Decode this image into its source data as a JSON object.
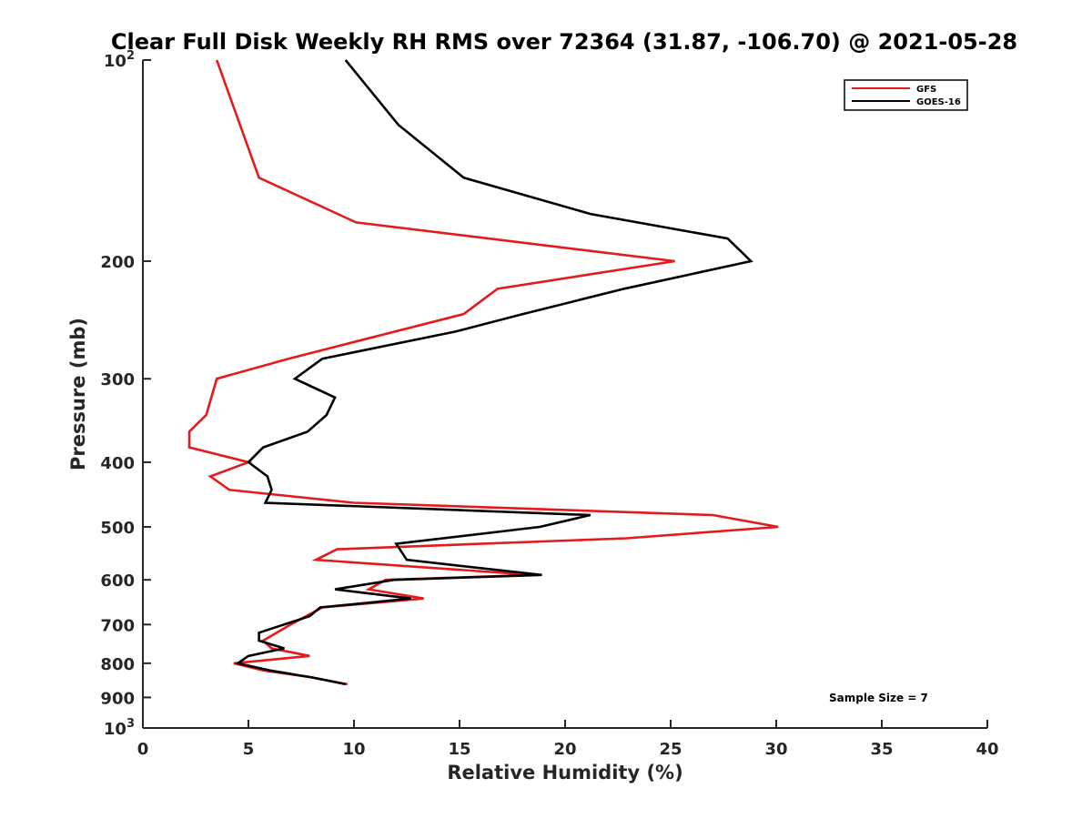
{
  "chart_data": {
    "type": "line",
    "title": "Clear Full Disk Weekly RH RMS over 72364 (31.87, -106.70) @ 2021-05-28",
    "xlabel": "Relative Humidity (%)",
    "ylabel": "Pressure (mb)",
    "xlim": [
      0,
      40
    ],
    "ylim": [
      100,
      1000
    ],
    "y_scale": "log",
    "y_reversed": true,
    "x_ticks": [
      "0",
      "5",
      "10",
      "15",
      "20",
      "25",
      "30",
      "35",
      "40"
    ],
    "y_ticks": [
      {
        "value": 100,
        "label": "10",
        "sup": "2"
      },
      {
        "value": 200,
        "label": "200",
        "sup": ""
      },
      {
        "value": 300,
        "label": "300",
        "sup": ""
      },
      {
        "value": 400,
        "label": "400",
        "sup": ""
      },
      {
        "value": 500,
        "label": "500",
        "sup": ""
      },
      {
        "value": 600,
        "label": "600",
        "sup": ""
      },
      {
        "value": 700,
        "label": "700",
        "sup": ""
      },
      {
        "value": 800,
        "label": "800",
        "sup": ""
      },
      {
        "value": 900,
        "label": "900",
        "sup": ""
      },
      {
        "value": 1000,
        "label": "10",
        "sup": "3"
      }
    ],
    "grid": false,
    "legend_position": "top-right",
    "annotation": "Sample Size = 7",
    "series": [
      {
        "name": "GFS",
        "color": "#e41a1c",
        "points": [
          [
            3.5,
            100
          ],
          [
            5.5,
            150
          ],
          [
            10.1,
            175
          ],
          [
            25.2,
            200
          ],
          [
            16.8,
            220
          ],
          [
            15.2,
            240
          ],
          [
            6.9,
            280
          ],
          [
            3.5,
            300
          ],
          [
            3.0,
            340
          ],
          [
            2.2,
            360
          ],
          [
            2.2,
            380
          ],
          [
            5.0,
            400
          ],
          [
            3.2,
            420
          ],
          [
            4.1,
            440
          ],
          [
            10.0,
            460
          ],
          [
            27.0,
            480
          ],
          [
            30.1,
            500
          ],
          [
            22.9,
            520
          ],
          [
            9.2,
            540
          ],
          [
            8.2,
            560
          ],
          [
            18.5,
            590
          ],
          [
            11.5,
            600
          ],
          [
            10.7,
            620
          ],
          [
            13.3,
            640
          ],
          [
            8.5,
            660
          ],
          [
            7.0,
            700
          ],
          [
            5.7,
            740
          ],
          [
            6.1,
            760
          ],
          [
            7.9,
            780
          ],
          [
            4.3,
            800
          ],
          [
            5.7,
            820
          ],
          [
            8.0,
            840
          ],
          [
            9.7,
            860
          ]
        ]
      },
      {
        "name": "GOES-16",
        "color": "#000000",
        "points": [
          [
            9.6,
            100
          ],
          [
            12.1,
            125
          ],
          [
            15.2,
            150
          ],
          [
            21.2,
            170
          ],
          [
            27.7,
            185
          ],
          [
            28.8,
            200
          ],
          [
            22.8,
            220
          ],
          [
            18.0,
            240
          ],
          [
            14.8,
            255
          ],
          [
            8.5,
            280
          ],
          [
            7.2,
            300
          ],
          [
            9.1,
            320
          ],
          [
            8.7,
            340
          ],
          [
            7.8,
            360
          ],
          [
            5.7,
            380
          ],
          [
            5.0,
            400
          ],
          [
            5.9,
            420
          ],
          [
            6.1,
            440
          ],
          [
            5.8,
            460
          ],
          [
            21.2,
            480
          ],
          [
            18.8,
            500
          ],
          [
            12.0,
            530
          ],
          [
            12.5,
            560
          ],
          [
            18.9,
            590
          ],
          [
            11.9,
            600
          ],
          [
            9.1,
            620
          ],
          [
            12.7,
            640
          ],
          [
            8.4,
            660
          ],
          [
            7.9,
            680
          ],
          [
            5.5,
            720
          ],
          [
            5.5,
            740
          ],
          [
            6.7,
            760
          ],
          [
            5.0,
            780
          ],
          [
            4.5,
            800
          ],
          [
            6.0,
            820
          ],
          [
            8.0,
            840
          ],
          [
            9.6,
            860
          ]
        ]
      }
    ]
  }
}
